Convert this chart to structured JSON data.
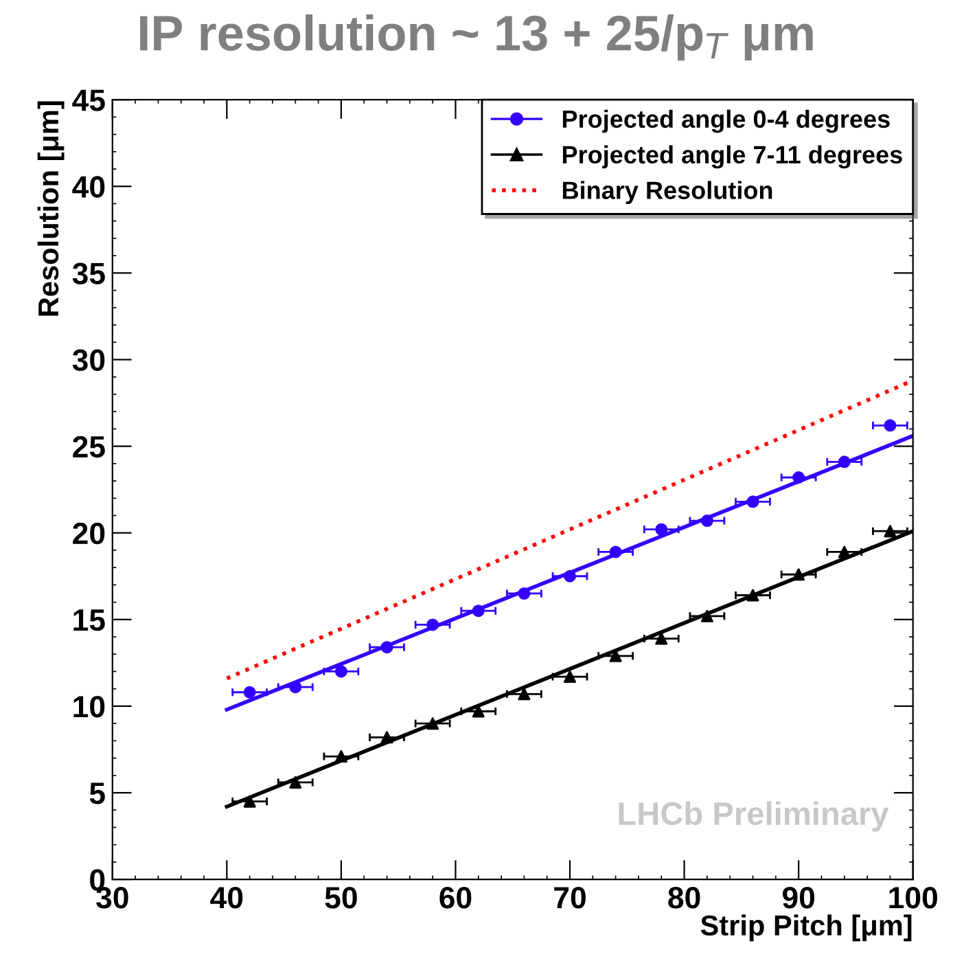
{
  "chart_data": {
    "type": "scatter",
    "title": "IP resolution ~ 13 + 25/p$_{T}$ μm",
    "xlabel": "Strip Pitch [μm]",
    "ylabel": "Resolution [μm]",
    "xlim": [
      30,
      100
    ],
    "xticks": [
      30,
      40,
      50,
      60,
      70,
      80,
      90,
      100
    ],
    "ylim": [
      0,
      45
    ],
    "yticks": [
      0,
      5,
      10,
      15,
      20,
      25,
      30,
      35,
      40,
      45
    ],
    "legend": "top right",
    "grid": false,
    "series": [
      {
        "name": "Projected angle 0-4 degrees",
        "color": "#3300ff",
        "marker": "circle",
        "x": [
          42,
          46,
          50,
          54,
          58,
          62,
          66,
          70,
          74,
          78,
          82,
          86,
          90,
          94,
          98
        ],
        "values": [
          10.8,
          11.1,
          12.0,
          13.4,
          14.7,
          15.5,
          16.5,
          17.5,
          18.9,
          20.2,
          20.7,
          21.8,
          23.2,
          24.1,
          26.2
        ],
        "xerrors": [
          1.5,
          1.5,
          1.5,
          1.5,
          1.5,
          1.5,
          1.5,
          1.5,
          1.5,
          1.5,
          1.5,
          1.5,
          1.5,
          1.5,
          1.5
        ]
      },
      {
        "name": "Projected angle 7-11 degrees",
        "color": "#000000",
        "marker": "triangle",
        "x": [
          42,
          46,
          50,
          54,
          58,
          62,
          66,
          70,
          74,
          78,
          82,
          86,
          90,
          94,
          98
        ],
        "values": [
          4.5,
          5.6,
          7.1,
          8.2,
          9.0,
          9.7,
          10.7,
          11.7,
          12.9,
          13.9,
          15.2,
          16.4,
          17.6,
          18.9,
          20.1
        ],
        "xerrors": [
          1.5,
          1.5,
          1.5,
          1.5,
          1.5,
          1.5,
          1.5,
          1.5,
          1.5,
          1.5,
          1.5,
          1.5,
          1.5,
          1.5,
          1.5
        ]
      },
      {
        "name": "Binary Resolution",
        "type": "line",
        "line_style": "dotted",
        "color": "#ff0000",
        "x": [
          40,
          100
        ],
        "values": [
          11.6,
          28.8
        ]
      },
      {
        "type": "line",
        "line_style": "solid",
        "color": "#3300ff",
        "x": [
          40,
          100
        ],
        "values": [
          9.8,
          25.6
        ]
      },
      {
        "type": "line",
        "line_style": "solid",
        "color": "#000000",
        "x": [
          40,
          100
        ],
        "values": [
          4.2,
          20.1
        ]
      }
    ],
    "annotations": [
      "LHCb Preliminary"
    ]
  }
}
